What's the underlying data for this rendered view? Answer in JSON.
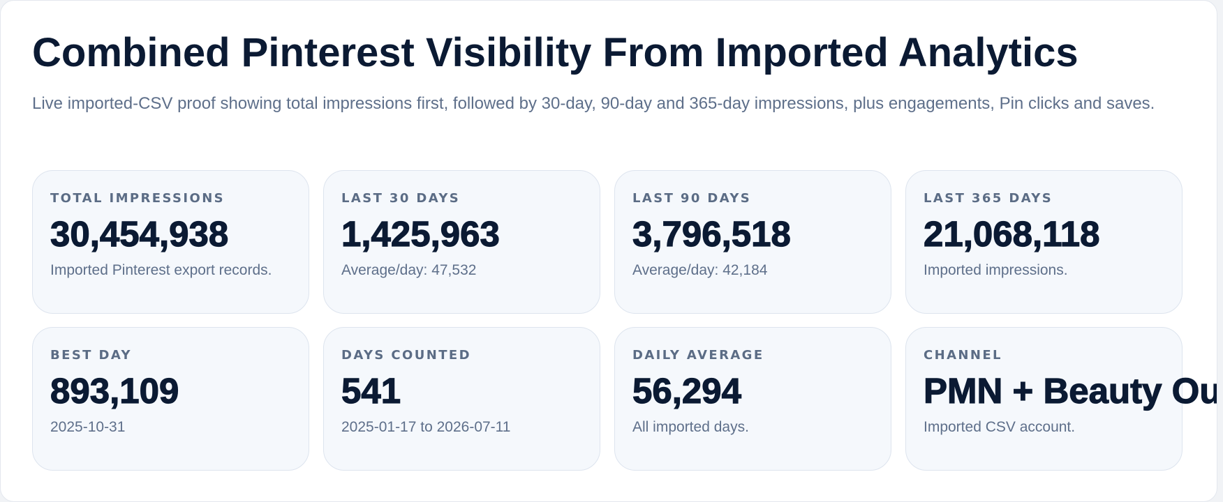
{
  "header": {
    "title": "Combined Pinterest Visibility From Imported Analytics",
    "subtitle": "Live imported-CSV proof showing total impressions first, followed by 30-day, 90-day and 365-day impressions, plus engagements, Pin clicks and saves."
  },
  "cards": [
    {
      "label": "TOTAL IMPRESSIONS",
      "value": "30,454,938",
      "note": "Imported Pinterest export records."
    },
    {
      "label": "LAST 30 DAYS",
      "value": "1,425,963",
      "note": "Average/day: 47,532"
    },
    {
      "label": "LAST 90 DAYS",
      "value": "3,796,518",
      "note": "Average/day: 42,184"
    },
    {
      "label": "LAST 365 DAYS",
      "value": "21,068,118",
      "note": "Imported impressions."
    },
    {
      "label": "BEST DAY",
      "value": "893,109",
      "note": "2025-10-31"
    },
    {
      "label": "DAYS COUNTED",
      "value": "541",
      "note": "2025-01-17 to 2026-07-11"
    },
    {
      "label": "DAILY AVERAGE",
      "value": "56,294",
      "note": "All imported days."
    },
    {
      "label": "CHANNEL",
      "value": "PMN + Beauty Ou",
      "note": "Imported CSV account."
    }
  ],
  "colors": {
    "title": "#0b1a33",
    "subtitle": "#5e6f8a",
    "card_background": "#f5f8fc",
    "card_border": "#dde4ee"
  }
}
